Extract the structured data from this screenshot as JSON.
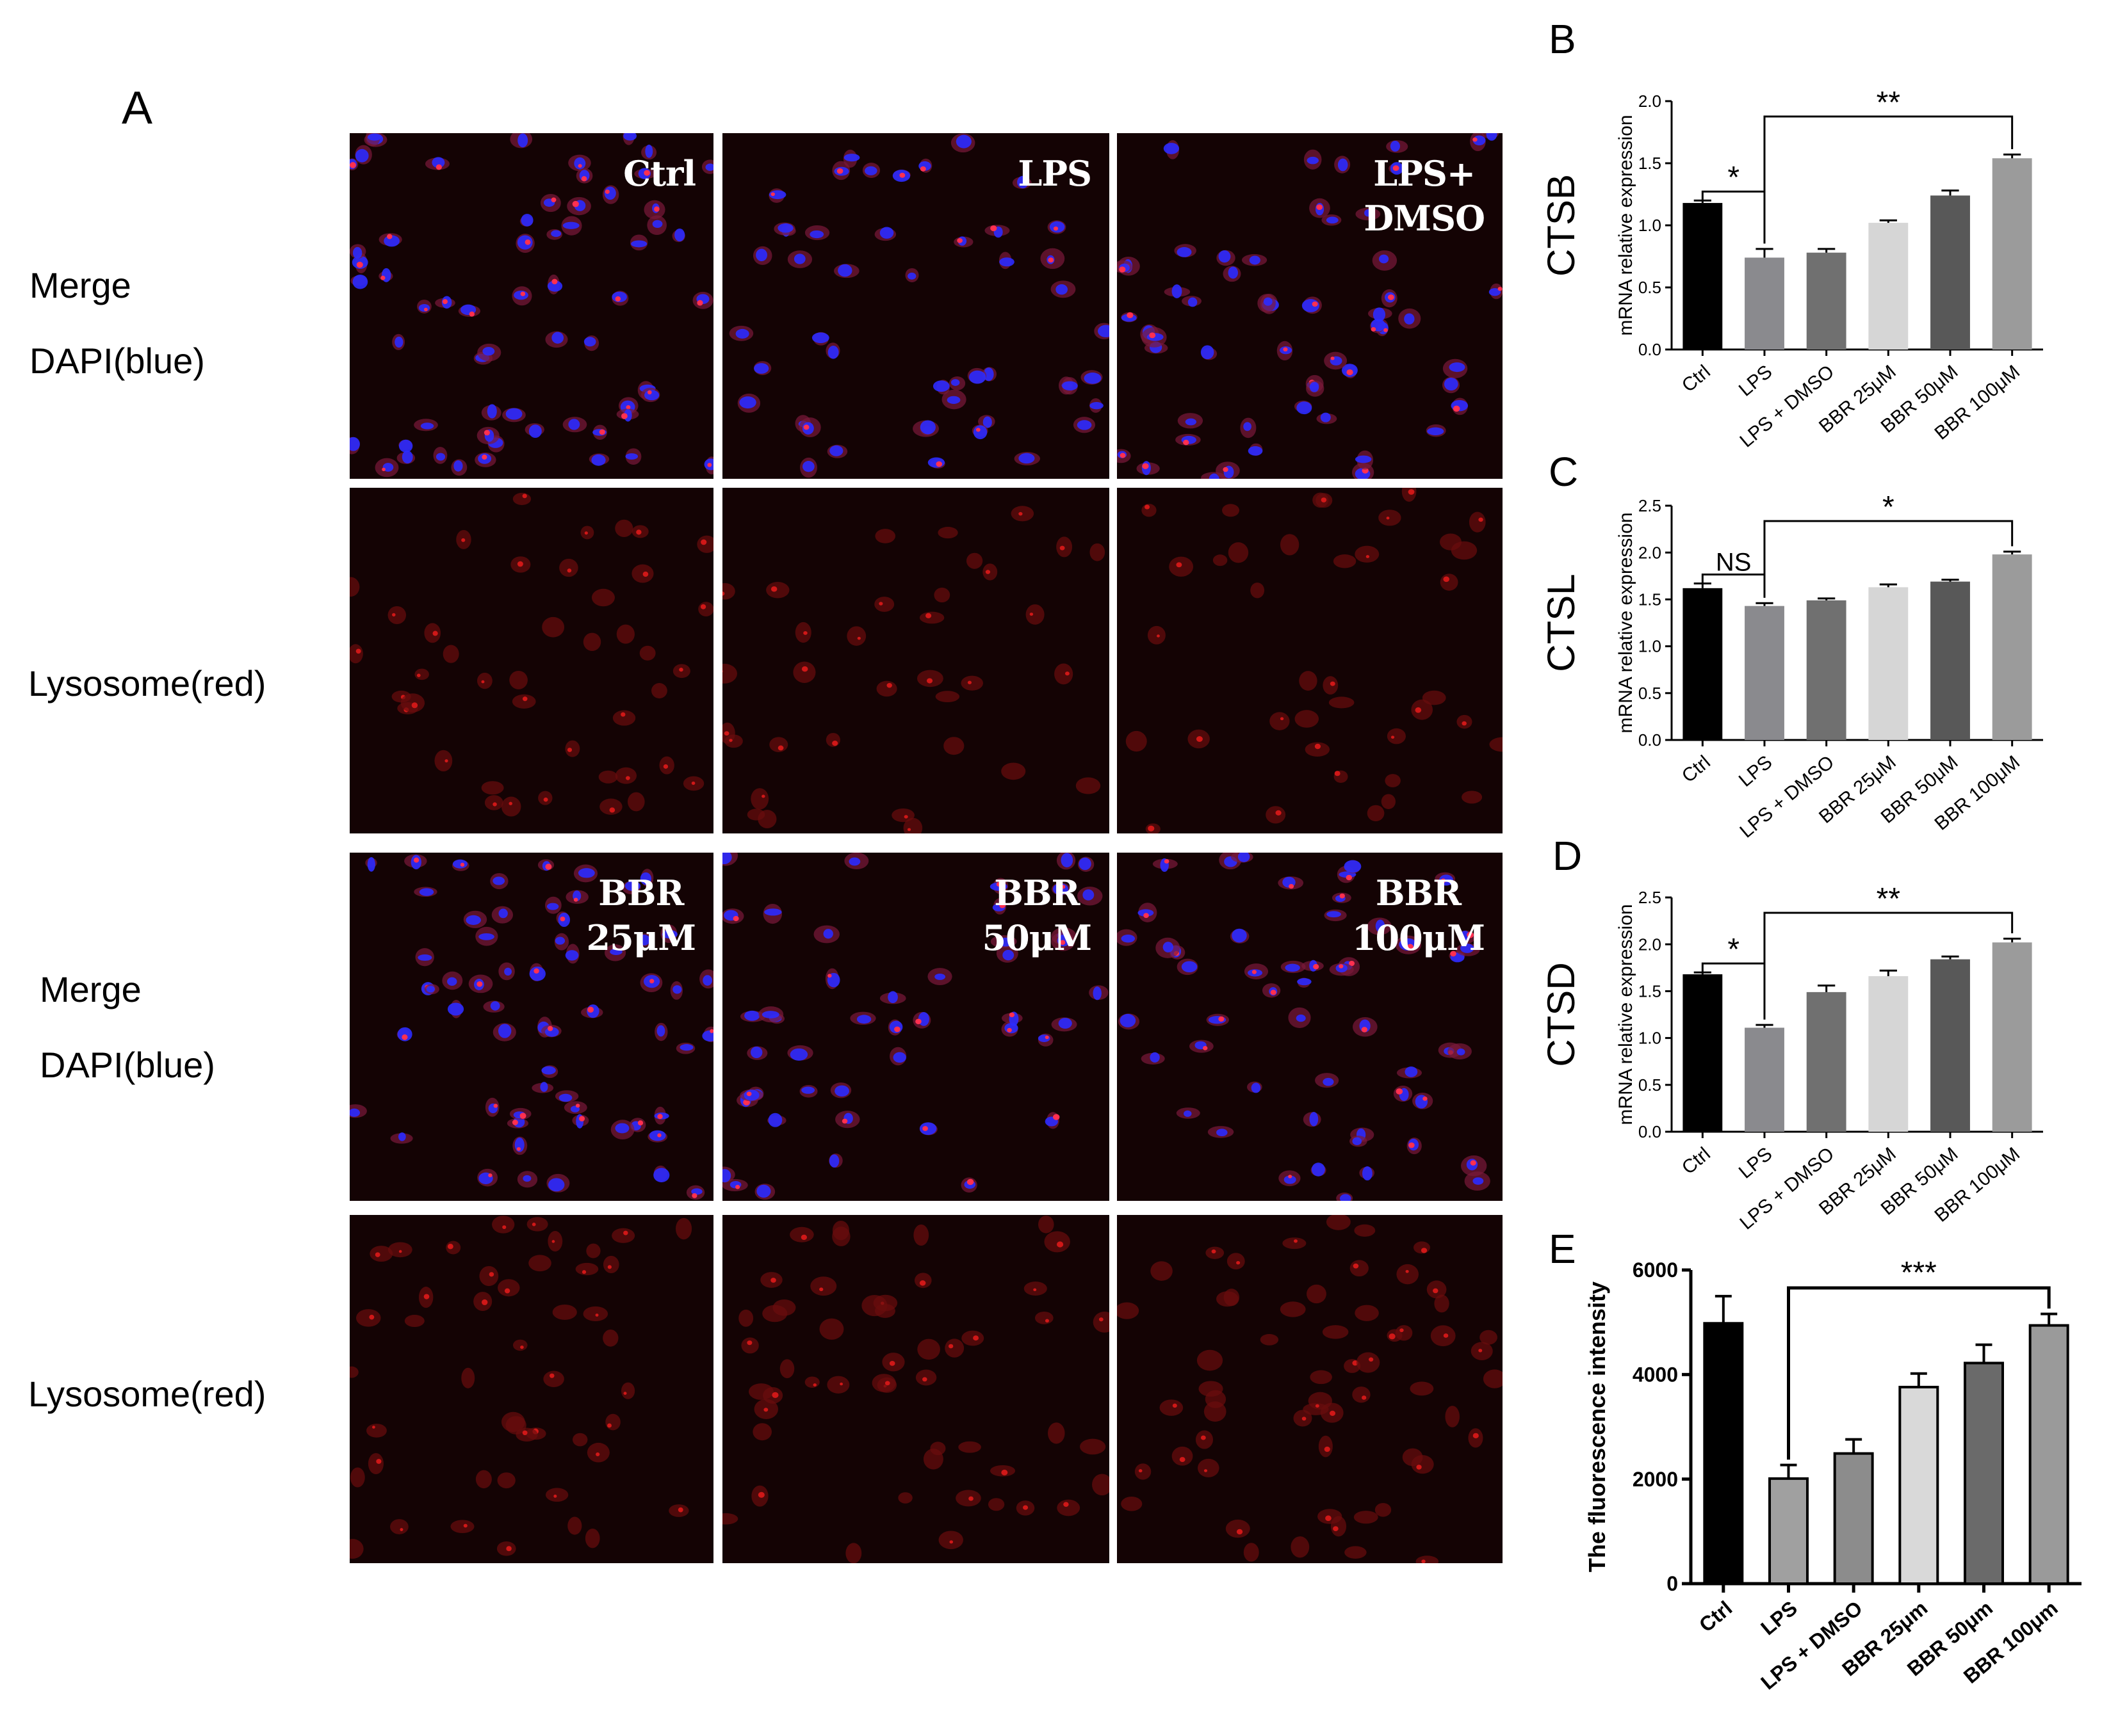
{
  "panels": {
    "a": "A",
    "b": "B",
    "c": "C",
    "d": "D",
    "e": "E"
  },
  "row_labels": {
    "merge1": "Merge",
    "dapi1": "DAPI(blue)",
    "lyso1": "Lysosome(red)",
    "merge2": "Merge",
    "dapi2": "DAPI(blue)",
    "lyso2": "Lysosome(red)"
  },
  "micrographs": {
    "top_merge": [
      {
        "label": "Ctrl",
        "seed": 11,
        "density": 62
      },
      {
        "label": "LPS",
        "seed": 23,
        "density": 48
      },
      {
        "label": "LPS+\nDMSO",
        "seed": 37,
        "density": 54
      }
    ],
    "top_lyso": [
      {
        "label": "",
        "seed": 41,
        "density": 42
      },
      {
        "label": "",
        "seed": 53,
        "density": 34
      },
      {
        "label": "",
        "seed": 67,
        "density": 38
      }
    ],
    "bottom_merge": [
      {
        "label": "BBR\n25μM",
        "seed": 71,
        "density": 60
      },
      {
        "label": "BBR\n50μM",
        "seed": 83,
        "density": 46
      },
      {
        "label": "BBR\n100μM",
        "seed": 97,
        "density": 52
      }
    ],
    "bottom_lyso": [
      {
        "label": "",
        "seed": 101,
        "density": 46
      },
      {
        "label": "",
        "seed": 113,
        "density": 50
      },
      {
        "label": "",
        "seed": 127,
        "density": 58
      }
    ]
  },
  "colors": {
    "nucleus_blue": "#2b2bff",
    "lysosome_red": "#d01818",
    "background_dark": "#140304"
  },
  "chart_data": [
    {
      "id": "B",
      "type": "bar",
      "gene": "CTSB",
      "ylabel": "mRNA relative expression",
      "categories": [
        "Ctrl",
        "LPS",
        "LPS + DMSO",
        "BBR 25μM",
        "BBR 50μM",
        "BBR 100μM"
      ],
      "values": [
        1.18,
        0.74,
        0.78,
        1.02,
        1.24,
        1.54
      ],
      "errors": [
        0.02,
        0.07,
        0.03,
        0.02,
        0.04,
        0.03
      ],
      "bar_colors": [
        "#000000",
        "#8a8a8e",
        "#707070",
        "#d6d6d6",
        "#585858",
        "#9b9b9b"
      ],
      "ylim": [
        0,
        2.0
      ],
      "yticks": [
        "0.0",
        "0.5",
        "1.0",
        "1.5",
        "2.0"
      ],
      "annotations": [
        {
          "text": "*",
          "from": 0,
          "to": 1
        },
        {
          "text": "**",
          "from": 1,
          "to": 5
        }
      ]
    },
    {
      "id": "C",
      "type": "bar",
      "gene": "CTSL",
      "ylabel": "mRNA relative expression",
      "categories": [
        "Ctrl",
        "LPS",
        "LPS + DMSO",
        "BBR 25μM",
        "BBR 50μM",
        "BBR 100μM"
      ],
      "values": [
        1.62,
        1.43,
        1.49,
        1.63,
        1.69,
        1.98
      ],
      "errors": [
        0.05,
        0.03,
        0.02,
        0.03,
        0.02,
        0.03
      ],
      "bar_colors": [
        "#000000",
        "#8a8a8e",
        "#707070",
        "#d6d6d6",
        "#585858",
        "#9b9b9b"
      ],
      "ylim": [
        0,
        2.5
      ],
      "yticks": [
        "0.0",
        "0.5",
        "1.0",
        "1.5",
        "2.0",
        "2.5"
      ],
      "annotations": [
        {
          "text": "NS",
          "from": 0,
          "to": 1
        },
        {
          "text": "*",
          "from": 1,
          "to": 5
        }
      ]
    },
    {
      "id": "D",
      "type": "bar",
      "gene": "CTSD",
      "ylabel": "mRNA relative expression",
      "categories": [
        "Ctrl",
        "LPS",
        "LPS + DMSO",
        "BBR 25μM",
        "BBR 50μM",
        "BBR 100μM"
      ],
      "values": [
        1.68,
        1.11,
        1.49,
        1.66,
        1.84,
        2.02
      ],
      "errors": [
        0.02,
        0.03,
        0.07,
        0.06,
        0.03,
        0.04
      ],
      "bar_colors": [
        "#000000",
        "#8a8a8e",
        "#707070",
        "#d6d6d6",
        "#585858",
        "#9b9b9b"
      ],
      "ylim": [
        0,
        2.5
      ],
      "yticks": [
        "0.0",
        "0.5",
        "1.0",
        "1.5",
        "2.0",
        "2.5"
      ],
      "annotations": [
        {
          "text": "*",
          "from": 0,
          "to": 1
        },
        {
          "text": "**",
          "from": 1,
          "to": 5
        }
      ]
    },
    {
      "id": "E",
      "type": "bar",
      "ylabel": "The fluorescence intensity",
      "categories": [
        "Ctrl",
        "LPS",
        "LPS + DMSO",
        "BBR 25μm",
        "BBR 50μm",
        "BBR 100μm"
      ],
      "values": [
        4980,
        2010,
        2490,
        3760,
        4220,
        4940
      ],
      "errors": [
        520,
        260,
        270,
        260,
        350,
        220
      ],
      "bar_colors": [
        "#000000",
        "#a0a0a0",
        "#8c8c8c",
        "#d9d9d9",
        "#6a6a6a",
        "#9a9a9a"
      ],
      "ylim": [
        0,
        6000
      ],
      "yticks": [
        "0",
        "2000",
        "4000",
        "6000"
      ],
      "annotations": [
        {
          "text": "***",
          "from": 1,
          "to": 5
        }
      ]
    }
  ]
}
